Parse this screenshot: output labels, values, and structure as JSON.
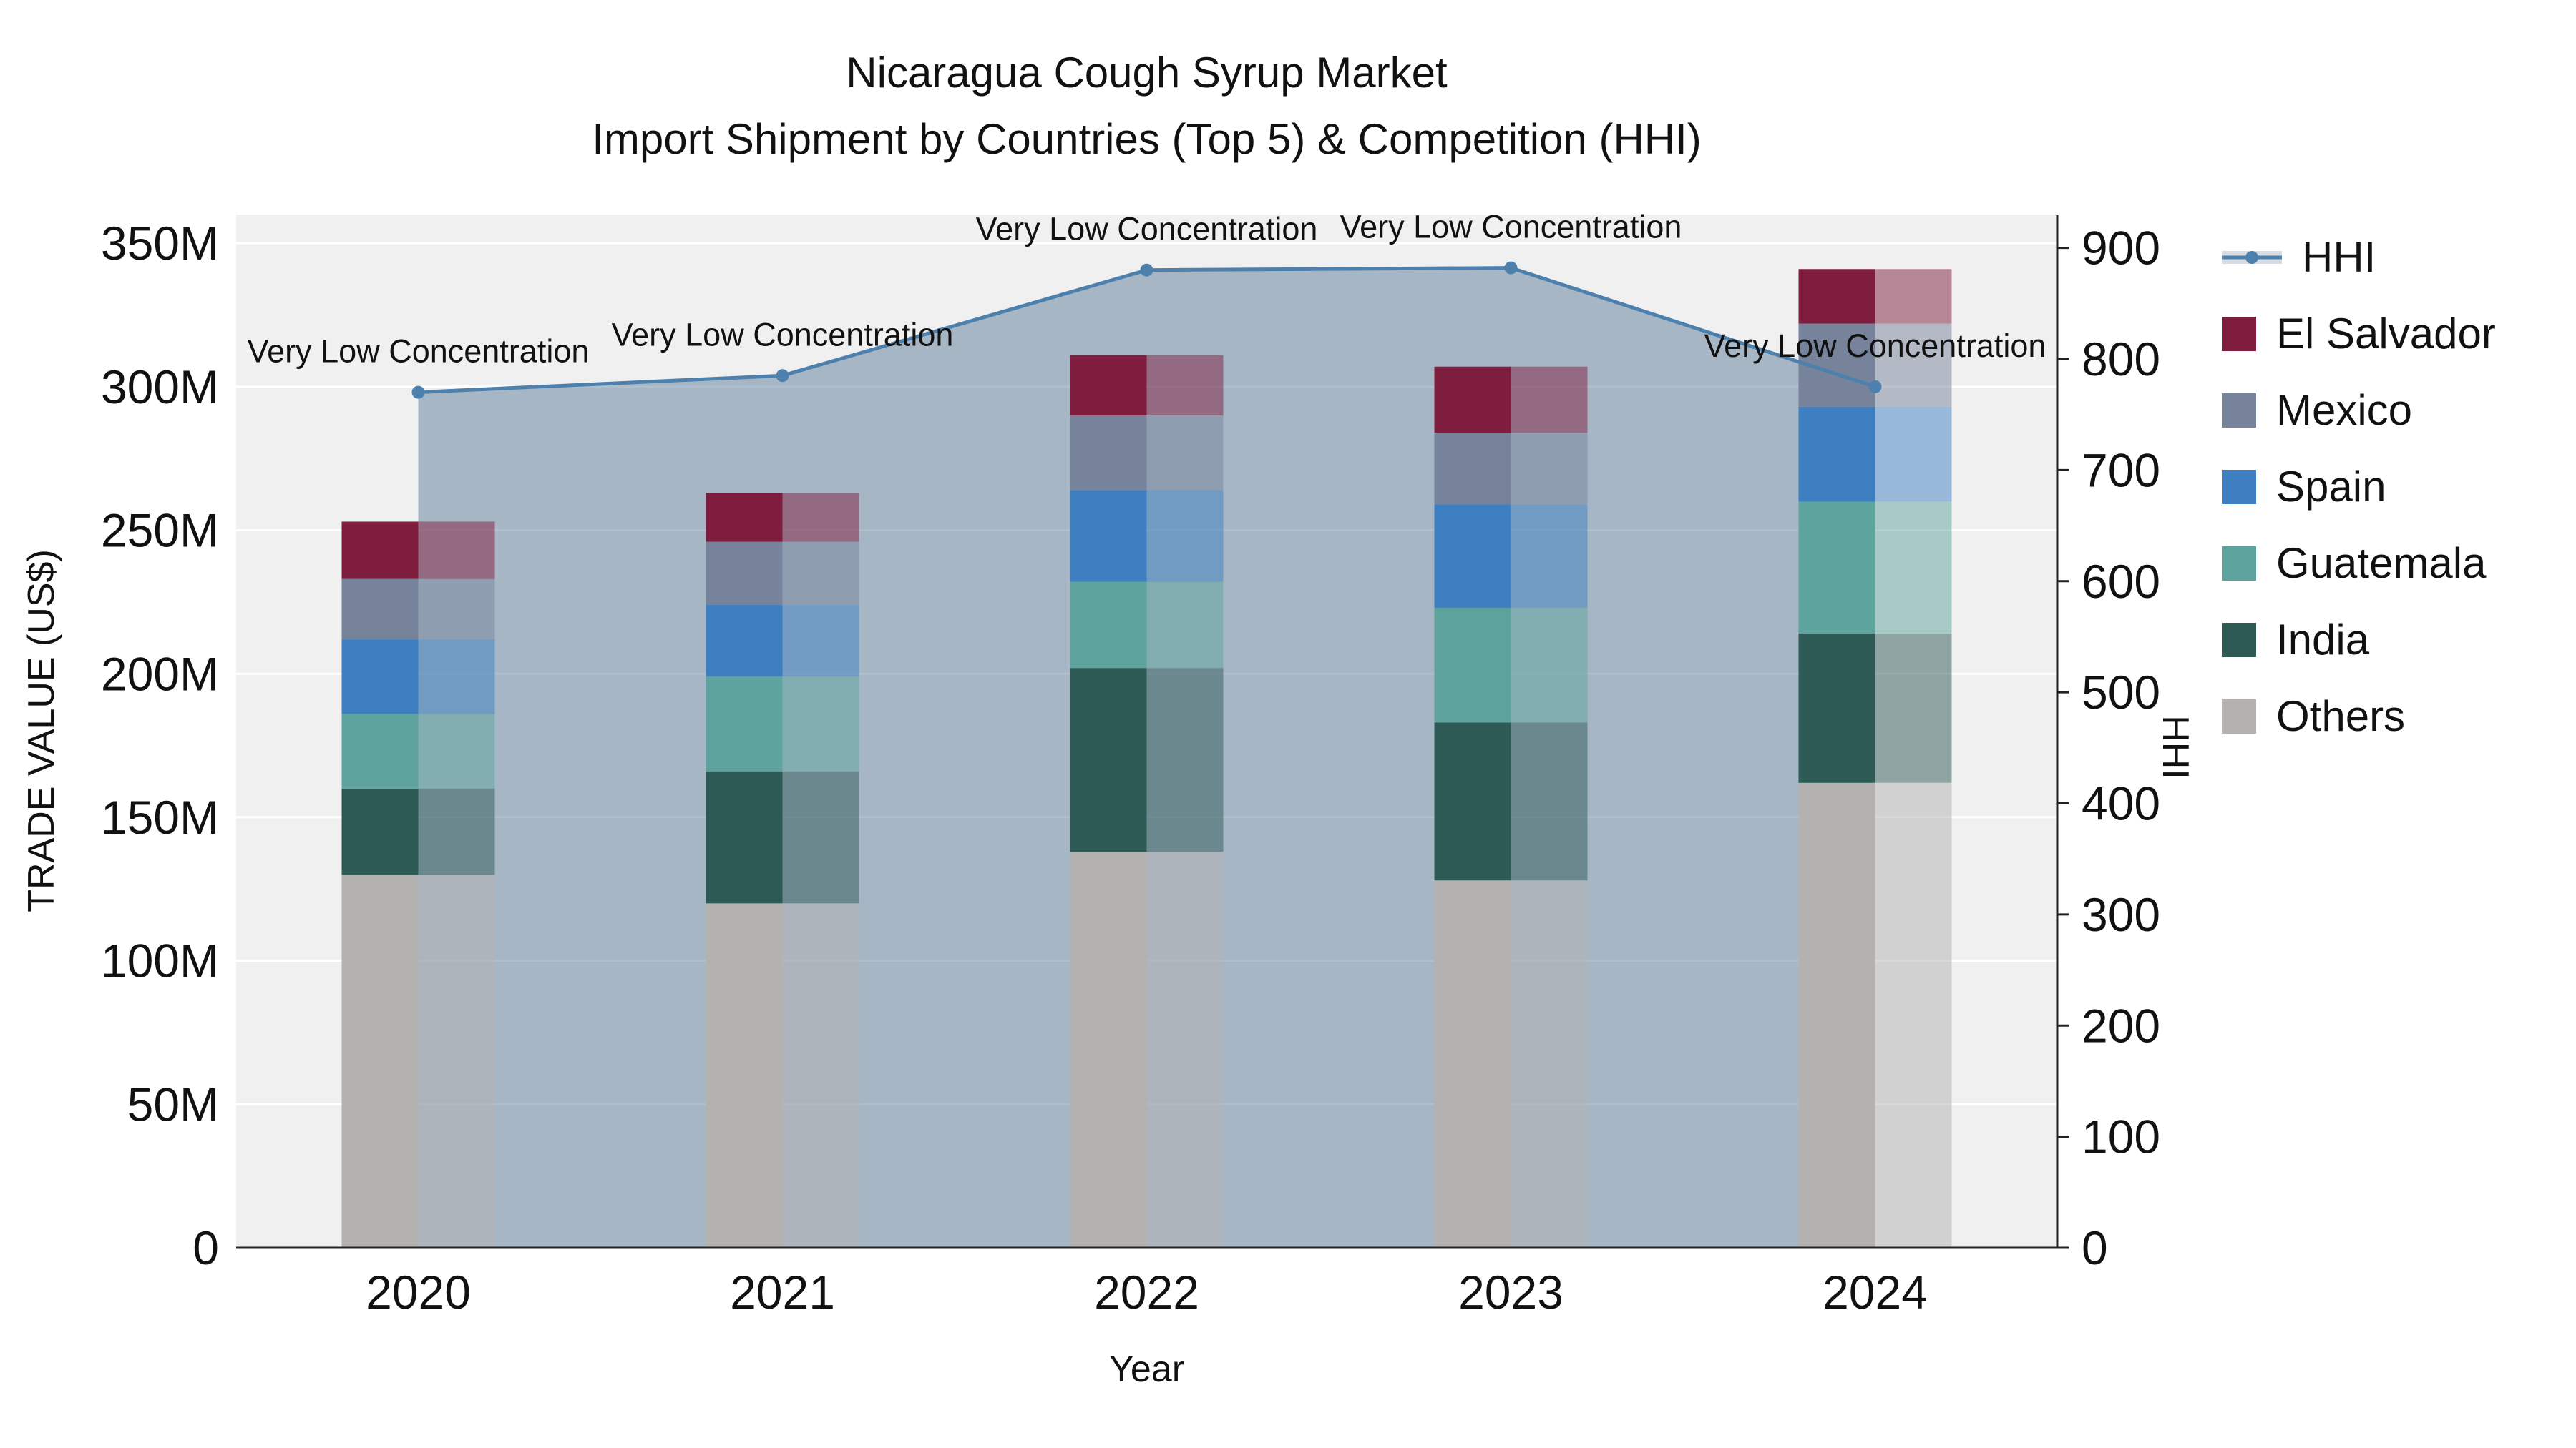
{
  "title": {
    "line1": "Nicaragua Cough Syrup Market",
    "line2": "Import Shipment by Countries (Top 5) & Competition (HHI)"
  },
  "chart_data": {
    "type": "stacked-bar+line",
    "categories": [
      "2020",
      "2021",
      "2022",
      "2023",
      "2024"
    ],
    "x_label": "Year",
    "units": "Million US$",
    "plot_bg": "#f0f0f1",
    "grid_color": "#ffffff",
    "axis_line_color": "#222222",
    "bar_series": [
      {
        "name": "Others",
        "color": "#b4b1b1",
        "values": [
          130,
          120,
          138,
          128,
          162
        ]
      },
      {
        "name": "India",
        "color": "#2d5a55",
        "values": [
          30,
          46,
          64,
          55,
          52
        ]
      },
      {
        "name": "Guatemala",
        "color": "#5ea39e",
        "values": [
          26,
          33,
          30,
          40,
          46
        ]
      },
      {
        "name": "Spain",
        "color": "#3e7fc1",
        "values": [
          26,
          25,
          32,
          36,
          33
        ]
      },
      {
        "name": "Mexico",
        "color": "#76839b",
        "values": [
          21,
          22,
          26,
          25,
          29
        ]
      },
      {
        "name": "El Salvador",
        "color": "#7f1d3e",
        "values": [
          20,
          17,
          21,
          23,
          19
        ]
      }
    ],
    "line_series": {
      "name": "HHI",
      "color": "#4d80ad",
      "fill_color": "rgba(77,110,141,0.45)",
      "values": [
        770,
        785,
        880,
        882,
        775
      ],
      "annotations": [
        "Very Low Concentration",
        "Very Low Concentration",
        "Very Low Concentration",
        "Very Low Concentration",
        "Very Low Concentration"
      ]
    },
    "y_left": {
      "title": "TRADE VALUE (US$)",
      "range_max": 360,
      "tick_values": [
        0,
        50,
        100,
        150,
        200,
        250,
        300,
        350
      ],
      "tick_labels": [
        "0",
        "50M",
        "100M",
        "150M",
        "200M",
        "250M",
        "300M",
        "350M"
      ]
    },
    "y_right": {
      "title": "HHI",
      "range_max": 930,
      "tick_values": [
        0,
        100,
        200,
        300,
        400,
        500,
        600,
        700,
        800,
        900
      ],
      "tick_labels": [
        "0",
        "100",
        "200",
        "300",
        "400",
        "500",
        "600",
        "700",
        "800",
        "900"
      ]
    }
  }
}
